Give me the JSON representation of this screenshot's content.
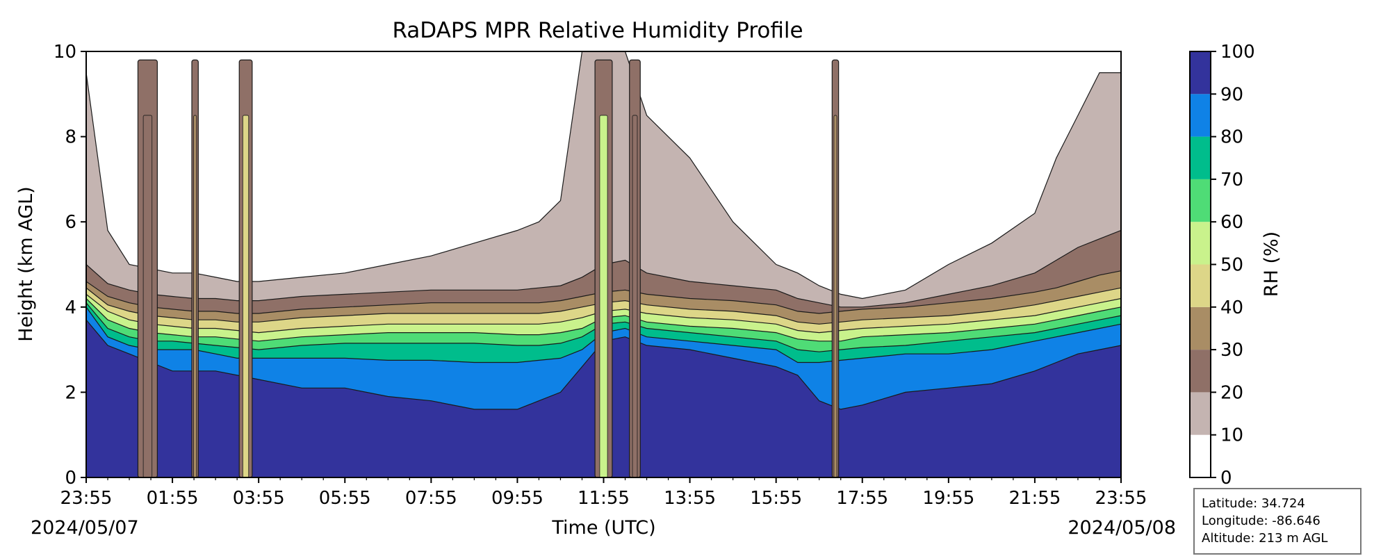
{
  "chart_data": {
    "type": "heatmap",
    "title": "RaDAPS MPR Relative Humidity Profile",
    "xlabel": "Time (UTC)",
    "ylabel": "Height (km AGL)",
    "x_ticks": [
      "23:55",
      "01:55",
      "03:55",
      "05:55",
      "07:55",
      "09:55",
      "11:55",
      "13:55",
      "15:55",
      "17:55",
      "19:55",
      "21:55",
      "23:55"
    ],
    "start_date": "2024/05/07",
    "end_date": "2024/05/08",
    "ylim": [
      0,
      10
    ],
    "y_ticks": [
      0,
      2,
      4,
      6,
      8,
      10
    ],
    "colorbar": {
      "label": "RH (%)",
      "ticks": [
        0,
        10,
        20,
        30,
        40,
        50,
        60,
        70,
        80,
        90,
        100
      ],
      "levels": [
        {
          "range": [
            0,
            10
          ],
          "color": "#ffffff"
        },
        {
          "range": [
            10,
            20
          ],
          "color": "#c4b4b1"
        },
        {
          "range": [
            20,
            30
          ],
          "color": "#8f7067"
        },
        {
          "range": [
            30,
            40
          ],
          "color": "#a98d65"
        },
        {
          "range": [
            40,
            50
          ],
          "color": "#ddd688"
        },
        {
          "range": [
            50,
            60
          ],
          "color": "#c9f28c"
        },
        {
          "range": [
            60,
            70
          ],
          "color": "#4fdc76"
        },
        {
          "range": [
            70,
            80
          ],
          "color": "#00bd8c"
        },
        {
          "range": [
            80,
            90
          ],
          "color": "#0f82e6"
        },
        {
          "range": [
            90,
            100
          ],
          "color": "#33339c"
        }
      ]
    },
    "profile": {
      "hours": [
        0,
        0.5,
        1,
        1.5,
        2,
        2.5,
        3,
        3.5,
        4,
        5,
        6,
        7,
        8,
        9,
        10,
        10.5,
        11,
        11.5,
        12,
        12.5,
        13,
        14,
        15,
        16,
        16.5,
        17,
        17.5,
        18,
        19,
        20,
        21,
        22,
        22.5,
        23,
        23.5,
        24
      ],
      "boundaries_km": [
        {
          "rh": 90,
          "h": [
            3.7,
            3.1,
            2.9,
            2.7,
            2.5,
            2.5,
            2.5,
            2.4,
            2.3,
            2.1,
            2.1,
            1.9,
            1.8,
            1.6,
            1.6,
            1.8,
            2.0,
            2.6,
            3.2,
            3.3,
            3.1,
            3.0,
            2.8,
            2.6,
            2.4,
            1.8,
            1.6,
            1.7,
            2.0,
            2.1,
            2.2,
            2.5,
            2.7,
            2.9,
            3.0,
            3.1
          ]
        },
        {
          "rh": 80,
          "h": [
            4.0,
            3.3,
            3.1,
            3.0,
            3.0,
            3.0,
            2.9,
            2.8,
            2.8,
            2.8,
            2.8,
            2.75,
            2.75,
            2.7,
            2.7,
            2.75,
            2.8,
            3.0,
            3.4,
            3.5,
            3.3,
            3.2,
            3.1,
            3.0,
            2.7,
            2.7,
            2.75,
            2.8,
            2.9,
            2.9,
            3.0,
            3.2,
            3.3,
            3.4,
            3.5,
            3.6
          ]
        },
        {
          "rh": 70,
          "h": [
            4.1,
            3.5,
            3.3,
            3.2,
            3.2,
            3.15,
            3.1,
            3.05,
            3.0,
            3.1,
            3.15,
            3.15,
            3.15,
            3.15,
            3.1,
            3.1,
            3.15,
            3.3,
            3.6,
            3.65,
            3.5,
            3.4,
            3.3,
            3.2,
            3.0,
            2.95,
            3.0,
            3.05,
            3.1,
            3.2,
            3.3,
            3.4,
            3.5,
            3.6,
            3.7,
            3.8
          ]
        },
        {
          "rh": 60,
          "h": [
            4.2,
            3.7,
            3.5,
            3.4,
            3.35,
            3.3,
            3.3,
            3.25,
            3.2,
            3.3,
            3.35,
            3.4,
            3.4,
            3.4,
            3.35,
            3.35,
            3.4,
            3.5,
            3.75,
            3.8,
            3.65,
            3.55,
            3.5,
            3.4,
            3.25,
            3.2,
            3.2,
            3.3,
            3.35,
            3.4,
            3.5,
            3.6,
            3.7,
            3.8,
            3.9,
            4.0
          ]
        },
        {
          "rh": 50,
          "h": [
            4.3,
            3.9,
            3.7,
            3.6,
            3.55,
            3.5,
            3.5,
            3.45,
            3.4,
            3.5,
            3.55,
            3.6,
            3.6,
            3.6,
            3.6,
            3.6,
            3.65,
            3.75,
            3.9,
            3.95,
            3.85,
            3.75,
            3.7,
            3.6,
            3.45,
            3.4,
            3.45,
            3.5,
            3.55,
            3.6,
            3.7,
            3.8,
            3.9,
            4.0,
            4.1,
            4.2
          ]
        },
        {
          "rh": 40,
          "h": [
            4.45,
            4.05,
            3.9,
            3.8,
            3.75,
            3.7,
            3.7,
            3.65,
            3.65,
            3.75,
            3.8,
            3.85,
            3.85,
            3.85,
            3.85,
            3.85,
            3.9,
            4.0,
            4.1,
            4.15,
            4.05,
            3.95,
            3.9,
            3.8,
            3.65,
            3.6,
            3.65,
            3.7,
            3.75,
            3.8,
            3.9,
            4.05,
            4.15,
            4.25,
            4.35,
            4.45
          ]
        },
        {
          "rh": 30,
          "h": [
            4.6,
            4.25,
            4.1,
            4.0,
            3.95,
            3.9,
            3.9,
            3.85,
            3.85,
            3.95,
            4.0,
            4.05,
            4.1,
            4.1,
            4.1,
            4.1,
            4.15,
            4.25,
            4.35,
            4.4,
            4.3,
            4.2,
            4.15,
            4.05,
            3.9,
            3.85,
            3.9,
            3.95,
            4.0,
            4.1,
            4.2,
            4.35,
            4.45,
            4.6,
            4.75,
            4.85
          ]
        },
        {
          "rh": 20,
          "h": [
            5.0,
            4.55,
            4.4,
            4.3,
            4.25,
            4.2,
            4.2,
            4.15,
            4.15,
            4.25,
            4.3,
            4.35,
            4.4,
            4.4,
            4.4,
            4.45,
            4.5,
            4.7,
            5.0,
            5.1,
            4.8,
            4.6,
            4.5,
            4.4,
            4.2,
            4.1,
            4.0,
            4.0,
            4.1,
            4.3,
            4.5,
            4.8,
            5.1,
            5.4,
            5.6,
            5.8
          ]
        },
        {
          "rh": 10,
          "h": [
            9.5,
            5.8,
            5.0,
            4.9,
            4.8,
            4.8,
            4.7,
            4.6,
            4.6,
            4.7,
            4.8,
            5.0,
            5.2,
            5.5,
            5.8,
            6.0,
            6.5,
            10.0,
            10.0,
            10.0,
            8.5,
            7.5,
            6.0,
            5.0,
            4.8,
            4.5,
            4.3,
            4.2,
            4.4,
            5.0,
            5.5,
            6.2,
            7.5,
            8.5,
            9.5,
            9.5
          ]
        }
      ]
    },
    "vertical_bands_hours": [
      {
        "start": 1.2,
        "end": 1.65
      },
      {
        "start": 2.45,
        "end": 2.6
      },
      {
        "start": 3.55,
        "end": 3.85
      },
      {
        "start": 11.8,
        "end": 12.2
      },
      {
        "start": 12.6,
        "end": 12.85
      },
      {
        "start": 17.3,
        "end": 17.45
      }
    ],
    "info": {
      "latitude": "Latitude: 34.724",
      "longitude": "Longitude: -86.646",
      "altitude": "Altitude: 213 m AGL"
    }
  }
}
